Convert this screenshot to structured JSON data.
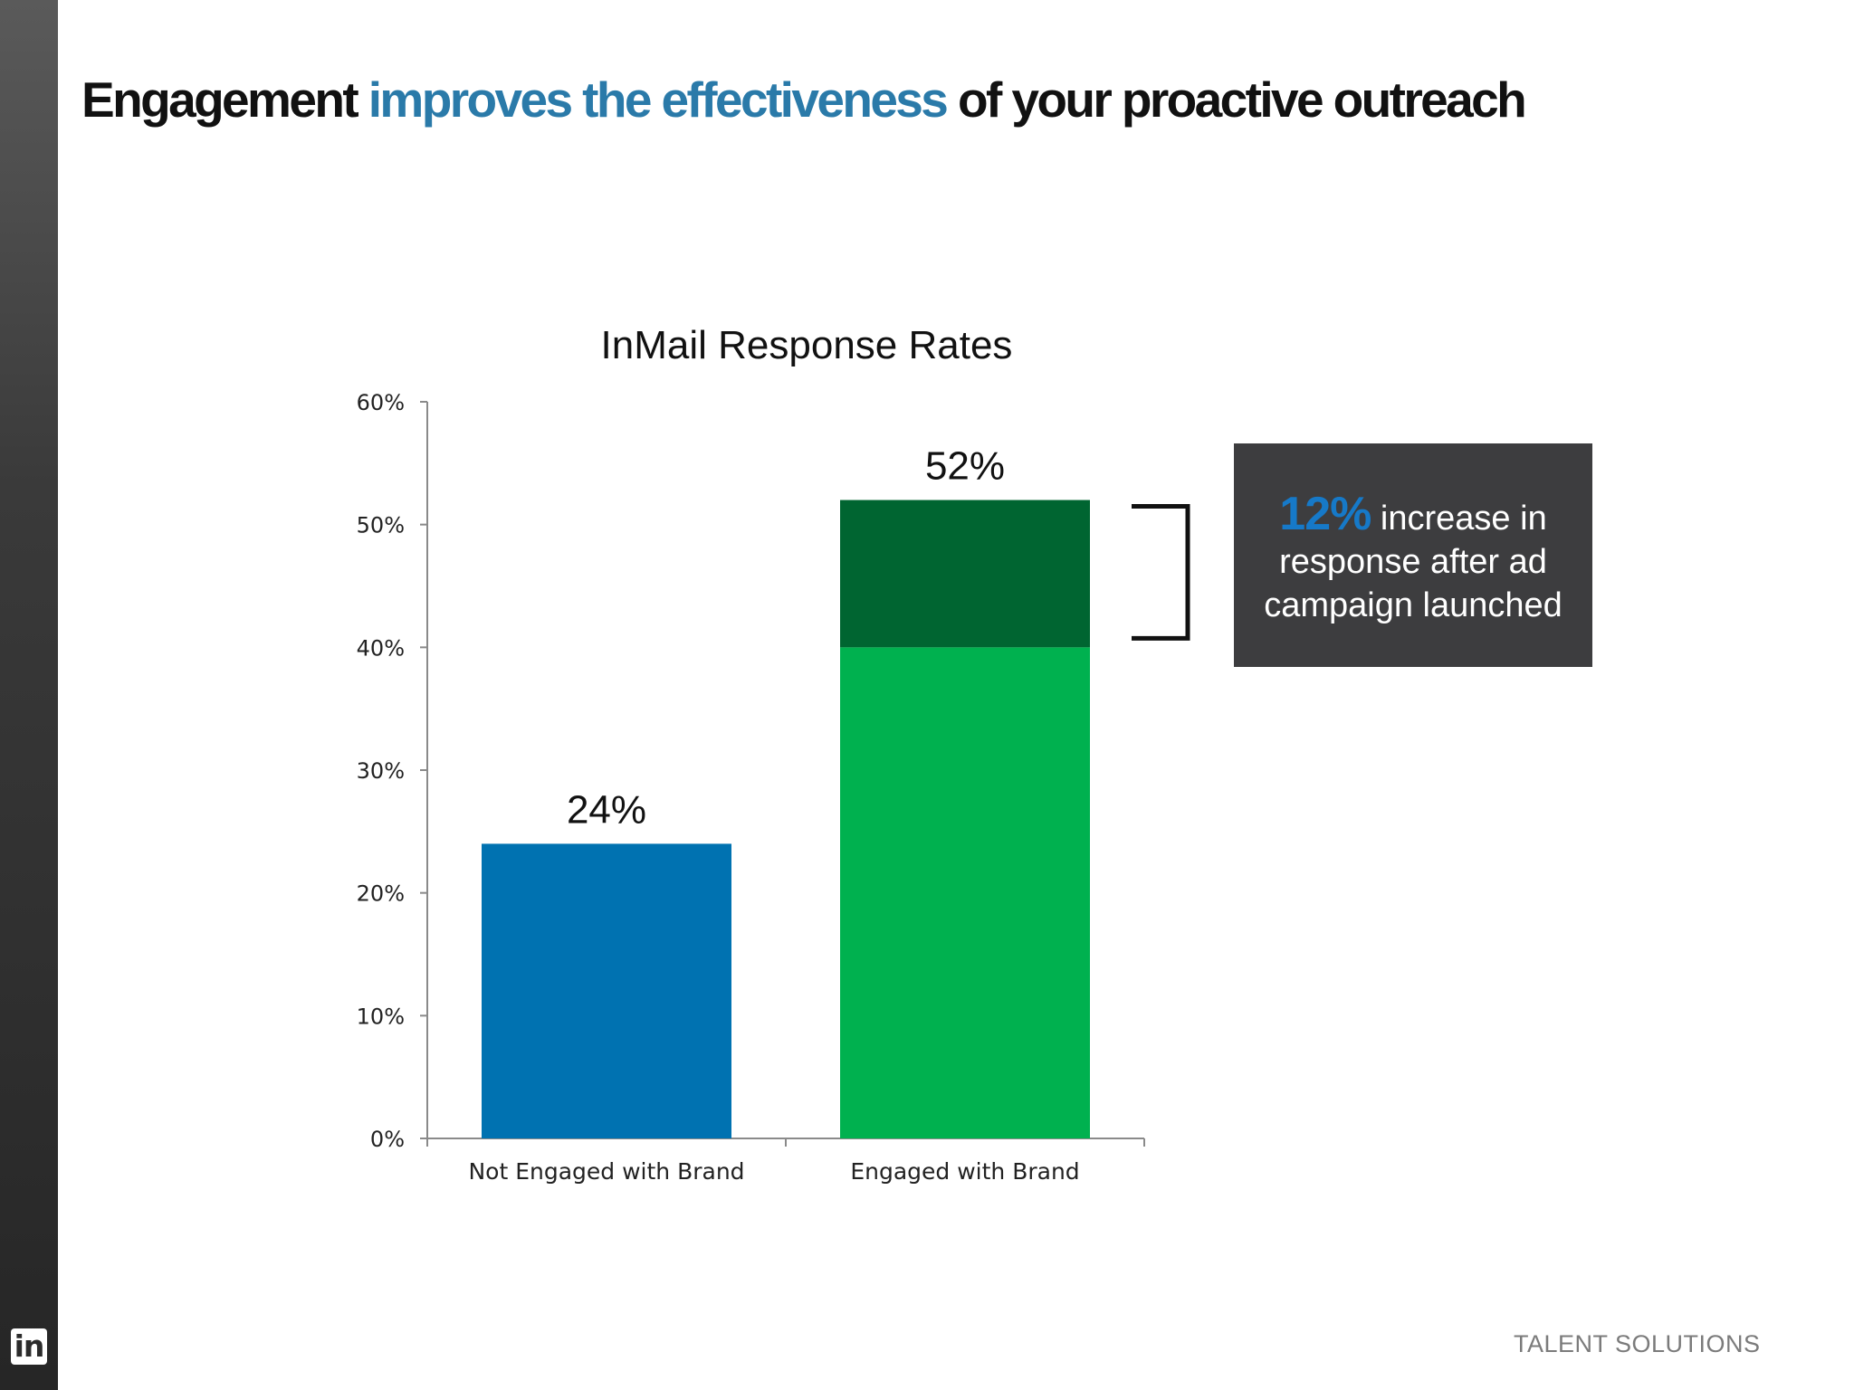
{
  "slide": {
    "title_part1": "Engagement ",
    "title_accent": "improves the effectiveness",
    "title_part2": " of your proactive outreach",
    "footer": "TALENT SOLUTIONS",
    "logo": "in",
    "colors": {
      "accent": "#2a7aa9",
      "callout_bg": "#3d3d3f",
      "callout_pct": "#1679c8"
    }
  },
  "callout": {
    "highlight": "12%",
    "text_line1": " increase in",
    "text_line2": "response after ad",
    "text_line3": "campaign launched"
  },
  "chart_data": {
    "type": "bar",
    "title": "InMail Response Rates",
    "categories": [
      "Not Engaged with Brand",
      "Engaged with Brand"
    ],
    "series": [
      {
        "values": [
          24,
          40
        ],
        "colors": [
          "#0072b1",
          "#00b14f"
        ]
      },
      {
        "values": [
          0,
          12
        ],
        "colors": [
          "#0072b1",
          "#006531"
        ]
      }
    ],
    "totals": [
      24,
      52
    ],
    "data_labels": [
      "24%",
      "52%"
    ],
    "ylim": [
      0,
      60
    ],
    "yticks": [
      0,
      10,
      20,
      30,
      40,
      50,
      60
    ],
    "ytick_labels": [
      "0%",
      "10%",
      "20%",
      "30%",
      "40%",
      "50%",
      "60%"
    ],
    "stacked": true,
    "grid": false,
    "legend": "none"
  }
}
